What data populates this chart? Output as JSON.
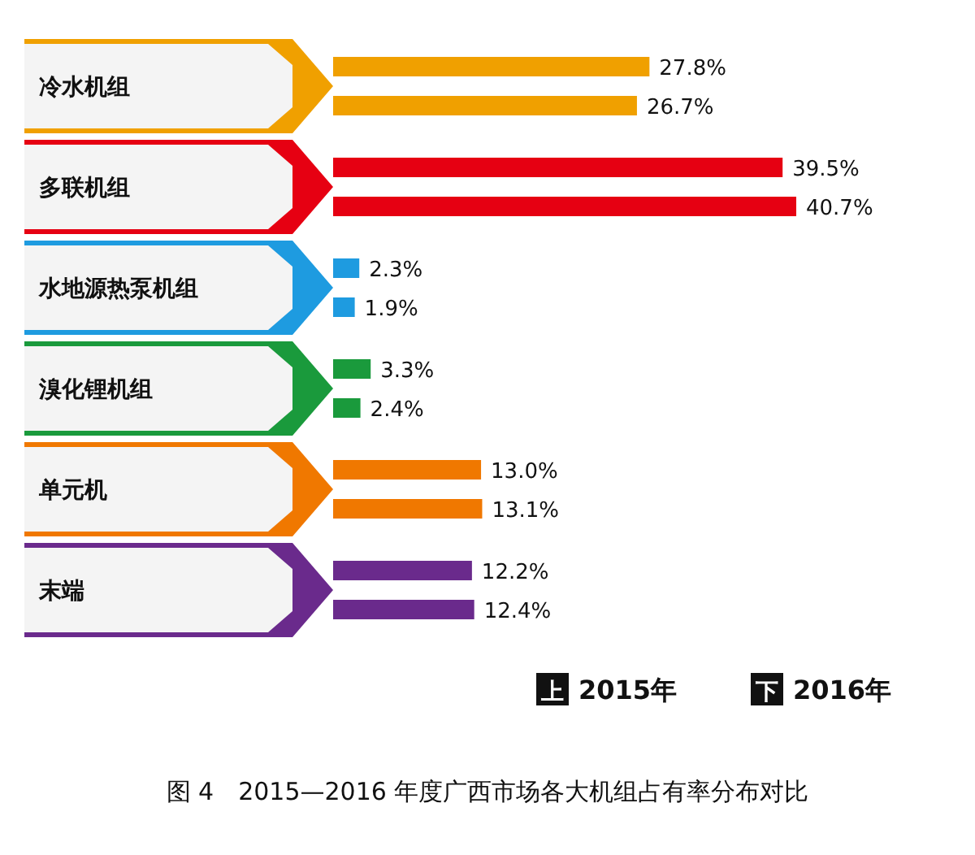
{
  "chart_data": {
    "type": "bar",
    "orientation": "horizontal",
    "title": "图 4　2015—2016 年度广西市场各大机组占有率分布对比",
    "categories": [
      "冷水机组",
      "多联机组",
      "水地源热泵机组",
      "溴化锂机组",
      "单元机",
      "末端"
    ],
    "series": [
      {
        "name": "2015年",
        "colors": [
          "#f0a000",
          "#e60012",
          "#1e9be0",
          "#1a9a3c",
          "#f07800",
          "#6a2a8c"
        ],
        "values": [
          27.8,
          39.5,
          2.3,
          3.3,
          13.0,
          12.2
        ],
        "value_labels": [
          "27.8%",
          "39.5%",
          "2.3%",
          "3.3%",
          "13.0%",
          "12.2%"
        ]
      },
      {
        "name": "2016年",
        "colors": [
          "#f0a000",
          "#e60012",
          "#1e9be0",
          "#1a9a3c",
          "#f07800",
          "#6a2a8c"
        ],
        "values": [
          26.7,
          40.7,
          1.9,
          2.4,
          13.1,
          12.4
        ],
        "value_labels": [
          "26.7%",
          "40.7%",
          "1.9%",
          "2.4%",
          "13.1%",
          "12.4%"
        ]
      }
    ],
    "legend": "bottom right",
    "annotations": [
      "上",
      "下"
    ]
  }
}
